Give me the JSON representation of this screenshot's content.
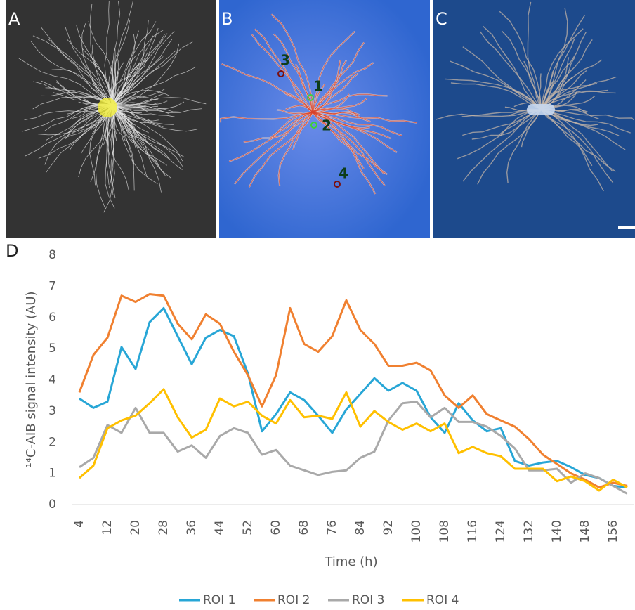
{
  "figure": {
    "panel_labels": [
      "A",
      "B",
      "C",
      "D"
    ],
    "roi_labels": [
      "1",
      "2",
      "3",
      "4"
    ]
  },
  "chart_data": {
    "type": "line",
    "y_label": "¹⁴C-AIB signal intensity (AU)",
    "x_label": "Time (h)",
    "categories": [
      4,
      null,
      12,
      null,
      20,
      null,
      28,
      null,
      36,
      null,
      44,
      null,
      52,
      null,
      60,
      null,
      68,
      null,
      76,
      null,
      84,
      null,
      92,
      null,
      100,
      null,
      108,
      null,
      116,
      null,
      124,
      null,
      132,
      null,
      140,
      null,
      148,
      null,
      156,
      null
    ],
    "series": [
      {
        "name": "ROI 1",
        "color": "#27a6d6",
        "values": [
          3.4,
          3.1,
          3.3,
          5.05,
          4.35,
          5.85,
          6.3,
          5.4,
          4.5,
          5.35,
          5.6,
          5.4,
          4.2,
          2.35,
          2.9,
          3.6,
          3.35,
          2.85,
          2.3,
          3.05,
          3.55,
          4.05,
          3.65,
          3.9,
          3.65,
          2.8,
          2.3,
          3.25,
          2.7,
          2.35,
          2.45,
          1.4,
          1.25,
          1.35,
          1.4,
          1.2,
          0.95,
          0.85,
          0.6,
          0.55
        ]
      },
      {
        "name": "ROI 2",
        "color": "#f08030",
        "values": [
          3.6,
          4.8,
          5.35,
          6.7,
          6.5,
          6.75,
          6.7,
          5.8,
          5.3,
          6.1,
          5.8,
          4.9,
          4.15,
          3.15,
          4.15,
          6.3,
          5.15,
          4.9,
          5.4,
          6.55,
          5.6,
          5.15,
          4.45,
          4.45,
          4.55,
          4.3,
          3.5,
          3.1,
          3.5,
          2.9,
          2.7,
          2.5,
          2.1,
          1.6,
          1.3,
          1.0,
          0.8,
          0.55,
          0.7,
          0.6
        ]
      },
      {
        "name": "ROI 3",
        "color": "#a9a9a9",
        "values": [
          1.2,
          1.5,
          2.55,
          2.3,
          3.1,
          2.3,
          2.3,
          1.7,
          1.9,
          1.5,
          2.2,
          2.45,
          2.3,
          1.6,
          1.75,
          1.25,
          1.1,
          0.95,
          1.05,
          1.1,
          1.5,
          1.7,
          2.7,
          3.25,
          3.3,
          2.8,
          3.1,
          2.65,
          2.65,
          2.5,
          2.2,
          1.8,
          1.1,
          1.1,
          1.15,
          0.7,
          1.0,
          0.85,
          0.6,
          0.35
        ]
      },
      {
        "name": "ROI 4",
        "color": "#ffc000",
        "values": [
          0.85,
          1.25,
          2.45,
          2.7,
          2.85,
          3.25,
          3.7,
          2.8,
          2.15,
          2.4,
          3.4,
          3.15,
          3.3,
          2.85,
          2.6,
          3.35,
          2.8,
          2.85,
          2.75,
          3.6,
          2.5,
          3.0,
          2.65,
          2.4,
          2.6,
          2.35,
          2.6,
          1.65,
          1.85,
          1.65,
          1.55,
          1.15,
          1.15,
          1.15,
          0.75,
          0.9,
          0.75,
          0.45,
          0.8,
          0.55
        ]
      }
    ],
    "ylim": [
      0,
      8
    ],
    "yticks": [
      0,
      1,
      2,
      3,
      4,
      5,
      6,
      7,
      8
    ],
    "grid": false
  }
}
